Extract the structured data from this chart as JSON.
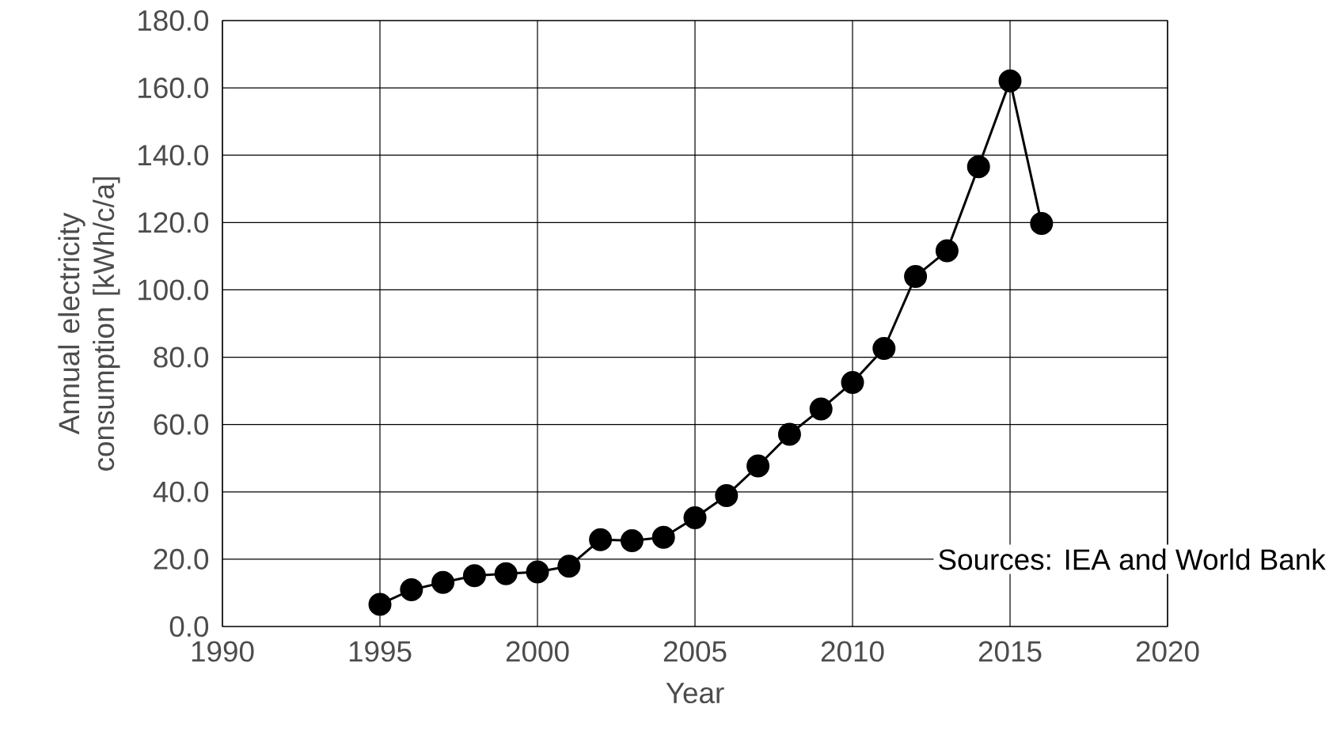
{
  "chart_data": {
    "type": "line",
    "xlabel": "Year",
    "ylabel": "Annual electricity consumption [kWh/c/a]",
    "x": [
      1995,
      1996,
      1997,
      1998,
      1999,
      2000,
      2001,
      2002,
      2003,
      2004,
      2005,
      2006,
      2007,
      2008,
      2009,
      2010,
      2011,
      2012,
      2013,
      2014,
      2015,
      2016
    ],
    "series": [
      {
        "color": "#000000",
        "values": [
          6.6,
          10.9,
          13.1,
          15.1,
          15.7,
          16.2,
          17.9,
          25.8,
          25.5,
          26.5,
          32.3,
          38.9,
          47.7,
          57.1,
          64.6,
          72.5,
          82.6,
          104.0,
          111.6,
          136.6,
          162.1,
          119.7
        ]
      }
    ],
    "xlim": [
      1990,
      2020
    ],
    "xticks": [
      1990,
      1995,
      2000,
      2005,
      2010,
      2015,
      2020
    ],
    "ylim": [
      0,
      180
    ],
    "yticks": [
      {
        "value": 0,
        "label": "0.0"
      },
      {
        "value": 20,
        "label": "20.0"
      },
      {
        "value": 40,
        "label": "40.0"
      },
      {
        "value": 60,
        "label": "60.0"
      },
      {
        "value": 80,
        "label": "80.0"
      },
      {
        "value": 100,
        "label": "100.0"
      },
      {
        "value": 120,
        "label": "120.0"
      },
      {
        "value": 140,
        "label": "140.0"
      },
      {
        "value": 160,
        "label": "160.0"
      },
      {
        "value": 180,
        "label": "180.0"
      }
    ],
    "grid": true,
    "marker": "circle",
    "line_style": "solid",
    "annotations": [
      "Sources: IEA and World Bank"
    ]
  }
}
